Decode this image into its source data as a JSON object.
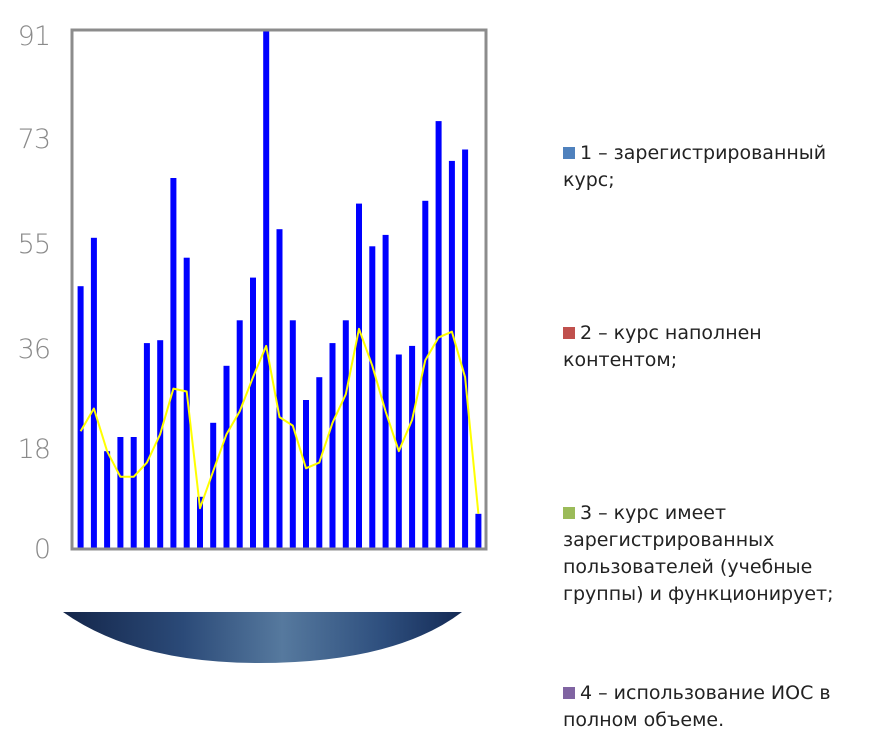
{
  "chart_data": {
    "type": "bar",
    "y_ticks": [
      "0",
      "18",
      "36",
      "55",
      "73",
      "91"
    ],
    "ylim": [
      0,
      91
    ],
    "bar_color": "#0000ff",
    "line_color": "#ffff00",
    "series": [
      {
        "type": "bar",
        "values": [
          46,
          54.5,
          17,
          19.5,
          19.5,
          36,
          36.5,
          65,
          51,
          9,
          22,
          32,
          40,
          47.5,
          91,
          56,
          40,
          26,
          30,
          36,
          40,
          60.5,
          53,
          55,
          34,
          35.5,
          61,
          75,
          68,
          70,
          6
        ]
      },
      {
        "type": "line",
        "values": [
          20.5,
          24.5,
          17,
          12.5,
          12.5,
          15,
          20,
          28,
          27.5,
          7,
          13.5,
          20,
          24,
          30,
          35.5,
          23,
          21.5,
          14,
          15,
          22,
          27,
          38.5,
          32,
          24,
          17,
          22.5,
          33,
          37,
          38,
          30,
          6
        ]
      }
    ]
  },
  "legend": [
    {
      "label": "1 – зарегистрированный курс;",
      "color": "#4f81bd"
    },
    {
      "label": "2 – курс наполнен контентом;",
      "color": "#c0504d"
    },
    {
      "label": "3 – курс имеет зарегистрированных пользователей (учебные группы) и функционирует;",
      "color": "#9bbb59"
    },
    {
      "label": "4 – использование ИОС в полном объеме.",
      "color": "#8064a2"
    }
  ]
}
